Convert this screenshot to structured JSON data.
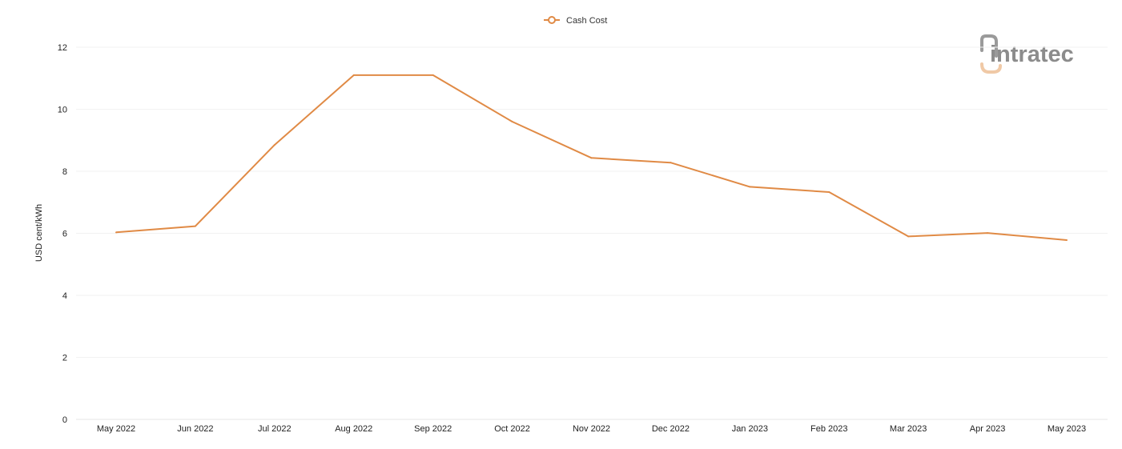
{
  "chart_data": {
    "type": "line",
    "categories": [
      "May 2022",
      "Jun 2022",
      "Jul 2022",
      "Aug 2022",
      "Sep 2022",
      "Oct 2022",
      "Nov 2022",
      "Dec 2022",
      "Jan 2023",
      "Feb 2023",
      "Mar 2023",
      "Apr 2023",
      "May 2023"
    ],
    "series": [
      {
        "name": "Cash Cost",
        "color": "#e08a45",
        "values": [
          6.03,
          6.23,
          8.85,
          11.1,
          11.1,
          9.6,
          8.43,
          8.28,
          7.5,
          7.33,
          5.9,
          6.01,
          5.78
        ]
      }
    ],
    "ylabel": "USD cent/kWh",
    "xlabel": "",
    "ylim": [
      0,
      12
    ],
    "yticks": [
      0,
      2,
      4,
      6,
      8,
      10,
      12
    ],
    "grid": true,
    "legend_position": "top-center"
  },
  "logo": {
    "text": "intratec",
    "icon": "intratec-logo-icon",
    "color": "#8c8c8c",
    "accent_color": "#f0c9a6"
  }
}
